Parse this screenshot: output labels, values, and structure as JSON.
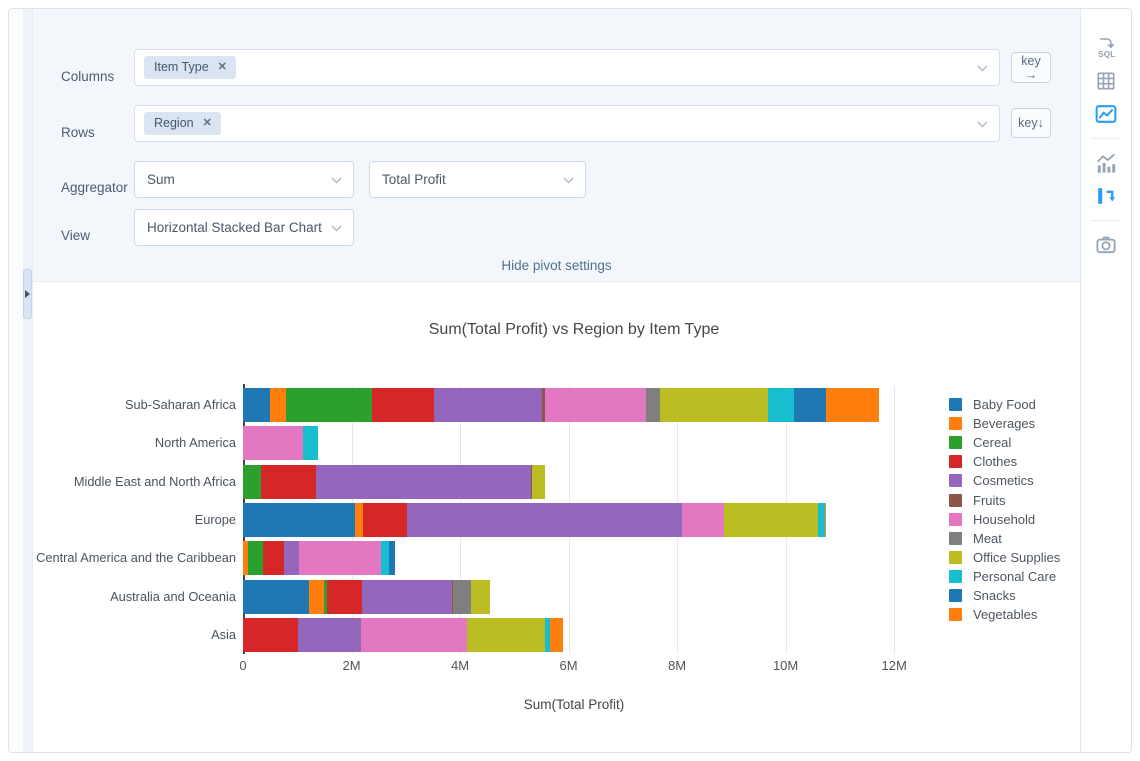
{
  "pivot": {
    "columns": {
      "label": "Columns",
      "tags": [
        {
          "name": "Item Type",
          "remove": "✕"
        }
      ],
      "key_label": "key",
      "key_arrow": "→"
    },
    "rows": {
      "label": "Rows",
      "tags": [
        {
          "name": "Region",
          "remove": "✕"
        }
      ],
      "key_label": "key",
      "key_arrow": "↓"
    },
    "aggregator": {
      "label": "Aggregator",
      "selected": "Sum",
      "value_selected": "Total Profit"
    },
    "view": {
      "label": "View",
      "selected": "Horizontal Stacked Bar Chart"
    },
    "hide_link": "Hide pivot settings"
  },
  "sidebar": {
    "sql_label": "SQL",
    "icons": [
      "sql",
      "data-table",
      "chart-image",
      "bar-line-chart",
      "pivot-chart",
      "camera"
    ],
    "active_color": "#2a9df4",
    "inactive_color": "#97a4b5"
  },
  "chart_data": {
    "type": "bar",
    "orientation": "horizontal",
    "stacked": true,
    "title": "Sum(Total Profit) vs Region by Item Type",
    "xlabel": "Sum(Total Profit)",
    "legend_position": "right",
    "grid": true,
    "xlim_m": [
      0,
      12.2
    ],
    "x_tick_values_m": [
      0,
      2,
      4,
      6,
      8,
      10,
      12
    ],
    "x_tick_labels": [
      "0",
      "2M",
      "4M",
      "6M",
      "8M",
      "10M",
      "12M"
    ],
    "categories": [
      "Sub-Saharan Africa",
      "North America",
      "Middle East and North Africa",
      "Europe",
      "Central America and the Caribbean",
      "Australia and Oceania",
      "Asia"
    ],
    "series": [
      {
        "name": "Baby Food",
        "color": "#1f77b4",
        "values_m": [
          0.5,
          0,
          0,
          2.07,
          0,
          1.21,
          0
        ]
      },
      {
        "name": "Beverages",
        "color": "#ff7f0e",
        "values_m": [
          0.29,
          0,
          0,
          0.15,
          0.1,
          0.28,
          0
        ]
      },
      {
        "name": "Cereal",
        "color": "#2ca02c",
        "values_m": [
          1.58,
          0,
          0.33,
          0,
          0.27,
          0.06,
          0
        ]
      },
      {
        "name": "Clothes",
        "color": "#d62728",
        "values_m": [
          1.15,
          0,
          1.01,
          0.8,
          0.39,
          0.65,
          1.01
        ]
      },
      {
        "name": "Cosmetics",
        "color": "#9467bd",
        "values_m": [
          1.99,
          0,
          3.96,
          5.07,
          0.28,
          1.65,
          1.17
        ]
      },
      {
        "name": "Fruits",
        "color": "#8c564b",
        "values_m": [
          0.06,
          0,
          0.03,
          0,
          0,
          0.02,
          0
        ]
      },
      {
        "name": "Household",
        "color": "#e377c2",
        "values_m": [
          1.86,
          1.11,
          0,
          0.77,
          1.5,
          0,
          1.95
        ]
      },
      {
        "name": "Meat",
        "color": "#7f7f7f",
        "values_m": [
          0.26,
          0,
          0,
          0,
          0,
          0.33,
          0
        ]
      },
      {
        "name": "Office Supplies",
        "color": "#bcbd22",
        "values_m": [
          1.98,
          0,
          0.23,
          1.73,
          0,
          0.36,
          1.43
        ]
      },
      {
        "name": "Personal Care",
        "color": "#17becf",
        "values_m": [
          0.48,
          0.28,
          0,
          0.13,
          0.15,
          0,
          0.09
        ]
      },
      {
        "name": "Snacks",
        "color": "#1f77b4",
        "values_m": [
          0.6,
          0,
          0,
          0,
          0.12,
          0,
          0
        ]
      },
      {
        "name": "Vegetables",
        "color": "#ff7f0e",
        "values_m": [
          0.98,
          0,
          0,
          0.02,
          0,
          0,
          0.25
        ]
      }
    ]
  }
}
